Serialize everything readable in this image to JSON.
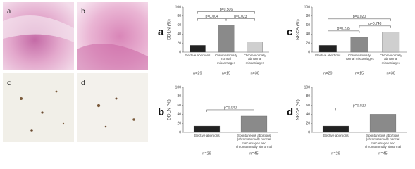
{
  "images": [
    {
      "label": "a"
    },
    {
      "label": "b"
    },
    {
      "label": "c"
    },
    {
      "label": "d"
    }
  ],
  "chart_data": [
    {
      "type": "bar",
      "panel_label": "a",
      "ylabel": "DDLN (%)",
      "categories": [
        "Elective abortions",
        "Chromosomally normal miscarriages",
        "Chromosomally abnormal miscarriages"
      ],
      "values": [
        15,
        60,
        23
      ],
      "colors": [
        "#222222",
        "#8a8a8a",
        "#cfcfcf"
      ],
      "ylim": [
        0,
        100
      ],
      "yticks": [
        0,
        20,
        40,
        60,
        80,
        100
      ],
      "annotations": [
        "p=0.506",
        "p=0.004",
        "p=0.023"
      ],
      "n_labels": [
        "n=29",
        "n=15",
        "n=30"
      ]
    },
    {
      "type": "bar",
      "panel_label": "c",
      "ylabel": "NKCA (%)",
      "categories": [
        "Elective abortions",
        "Chromosomally normal miscarriages",
        "Chromosomally abnormal miscarriages"
      ],
      "values": [
        15,
        33,
        44
      ],
      "colors": [
        "#222222",
        "#8a8a8a",
        "#cfcfcf"
      ],
      "ylim": [
        0,
        100
      ],
      "yticks": [
        0,
        20,
        40,
        60,
        80,
        100
      ],
      "annotations": [
        "p=0.020",
        "p=0.235",
        "p=0.748"
      ],
      "n_labels": [
        "n=29",
        "n=15",
        "n=30"
      ]
    },
    {
      "type": "bar",
      "panel_label": "b",
      "ylabel": "DDLN (%)",
      "categories": [
        "Elective abortions",
        "Spontaneous abortions (chromosomally normal miscarriages and chromosomally abnormal miscarriages)"
      ],
      "values": [
        14,
        36
      ],
      "colors": [
        "#222222",
        "#8a8a8a"
      ],
      "ylim": [
        0,
        100
      ],
      "yticks": [
        0,
        20,
        40,
        60,
        80,
        100
      ],
      "annotations": [
        "p=0.040"
      ],
      "n_labels": [
        "n=29",
        "n=45"
      ]
    },
    {
      "type": "bar",
      "panel_label": "d",
      "ylabel": "NKCA (%)",
      "categories": [
        "Elective abortions",
        "Spontaneous abortions (chromosomally normal miscarriages and chromosomally abnormal miscarriages)"
      ],
      "values": [
        14,
        40
      ],
      "colors": [
        "#222222",
        "#8a8a8a"
      ],
      "ylim": [
        0,
        100
      ],
      "yticks": [
        0,
        20,
        40,
        60,
        80,
        100
      ],
      "annotations": [
        "p=0.020"
      ],
      "n_labels": [
        "n=29",
        "n=45"
      ]
    }
  ]
}
